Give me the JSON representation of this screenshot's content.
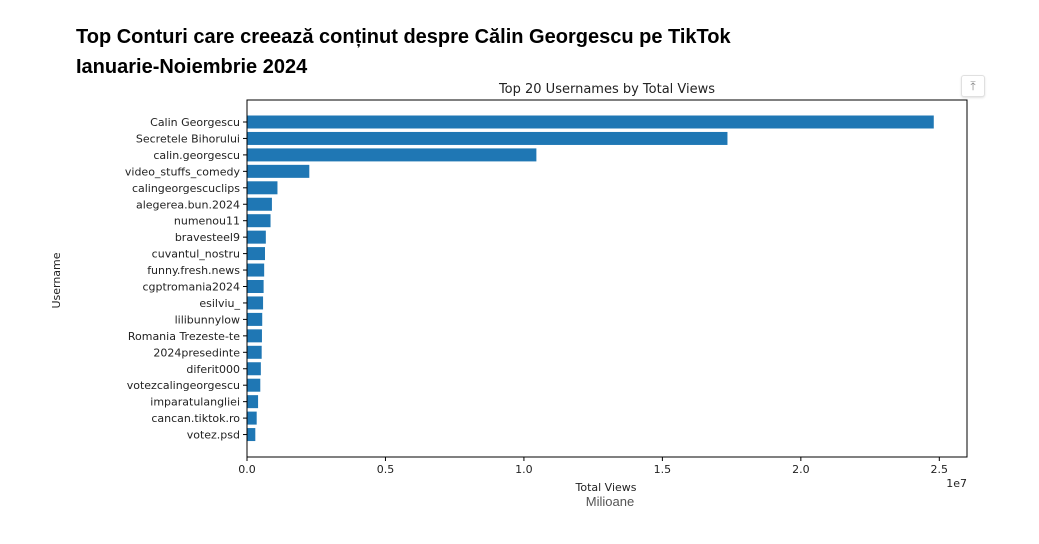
{
  "header": {
    "title_line1": "Top Conturi care creează conținut despre Călin Georgescu pe TikTok",
    "title_line2": "Ianuarie-Noiembrie 2024"
  },
  "scroll_top": {
    "icon": "arrow-up-icon",
    "glyph": "⤒"
  },
  "chart_data": {
    "type": "bar",
    "orientation": "horizontal",
    "title": "Top 20 Usernames by Total Views",
    "xlabel": "Total Views",
    "xlabel_note": "Milioane",
    "ylabel": "Username",
    "offset_label": "1e7",
    "xlim": [
      0,
      2.6
    ],
    "xticks": [
      0.0,
      0.5,
      1.0,
      1.5,
      2.0,
      2.5
    ],
    "xtick_labels": [
      "0.0",
      "0.5",
      "1.0",
      "1.5",
      "2.0",
      "2.5"
    ],
    "categories": [
      "Calin Georgescu",
      "Secretele Bihorului",
      "calin.georgescu",
      "video_stuffs_comedy",
      "calingeorgescuclips",
      "alegerea.bun.2024",
      "numenou11",
      "bravesteel9",
      "cuvantul_nostru",
      "funny.fresh.news",
      "cgptromania2024",
      "esilviu_",
      "lilibunnylow",
      "Romania Trezeste-te",
      "2024presedinte",
      "diferit000",
      "votezcalingeorgescu",
      "imparatulangliei",
      "cancan.tiktok.ro",
      "votez.psd"
    ],
    "values": [
      2.48,
      1.735,
      1.045,
      0.225,
      0.11,
      0.09,
      0.085,
      0.068,
      0.065,
      0.062,
      0.06,
      0.058,
      0.055,
      0.054,
      0.053,
      0.05,
      0.048,
      0.04,
      0.035,
      0.03
    ],
    "bar_color": "#1f77b4",
    "grid": false
  }
}
